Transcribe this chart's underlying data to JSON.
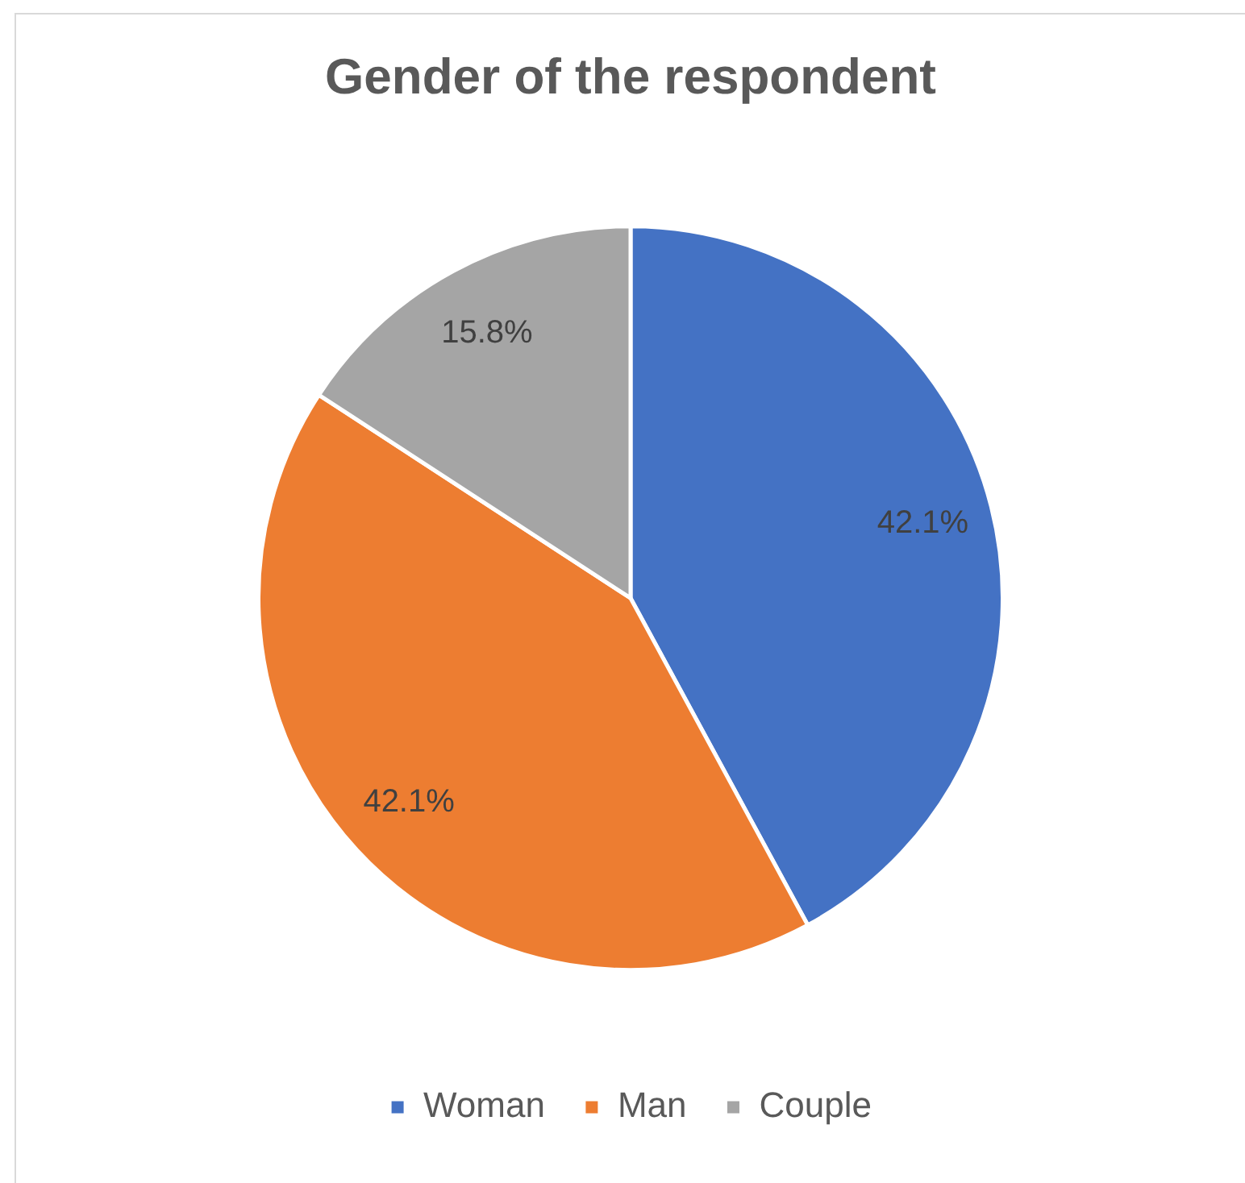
{
  "chart_data": {
    "type": "pie",
    "title": "Gender of the respondent",
    "categories": [
      "Woman",
      "Man",
      "Couple"
    ],
    "values": [
      42.1,
      42.1,
      15.8
    ],
    "colors": [
      "#4472c4",
      "#ed7d31",
      "#a5a5a5"
    ],
    "value_labels": [
      "42.1%",
      "42.1%",
      "15.8%"
    ],
    "legend": "bottom"
  }
}
